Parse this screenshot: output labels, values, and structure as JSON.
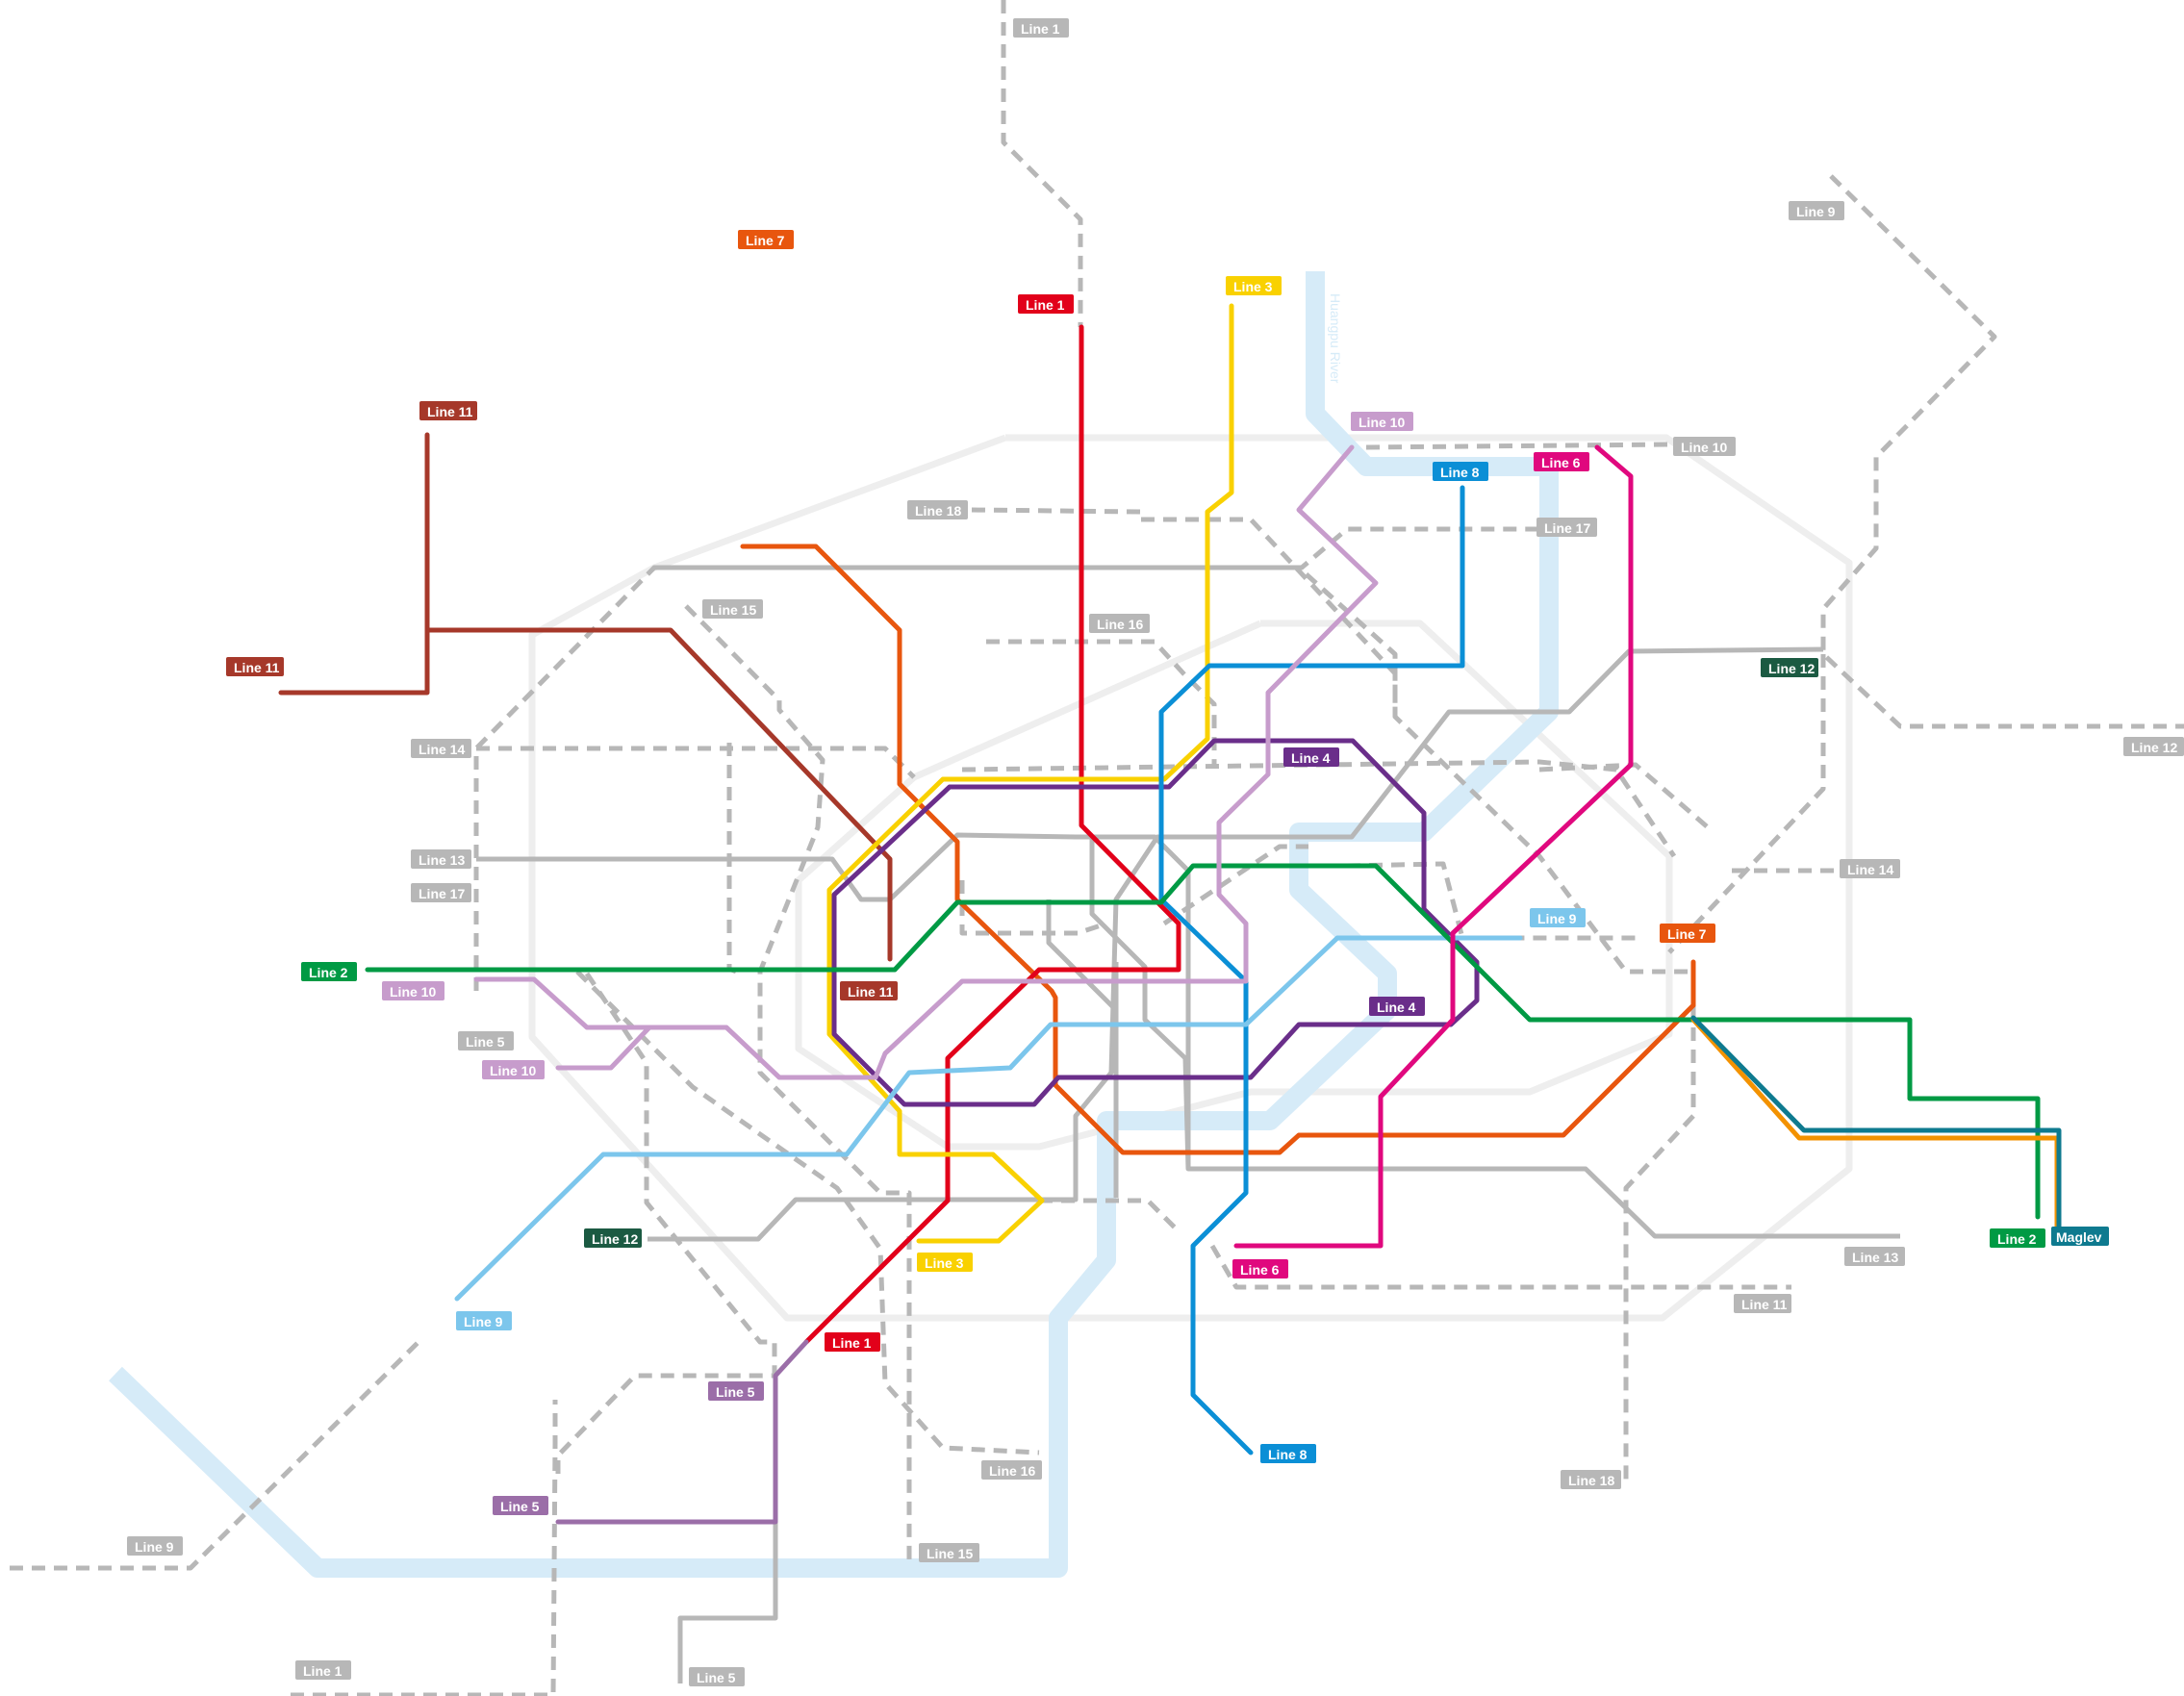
{
  "colors": {
    "line1": "#e2001a",
    "line2": "#009a44",
    "line3": "#f9d100",
    "line4": "#6a2e8a",
    "line5": "#9b6ea8",
    "line6": "#e0087e",
    "line7": "#e8560e",
    "line8": "#0b8fd6",
    "line9": "#7cc6ec",
    "line10": "#c79ccc",
    "line11": "#a6382a",
    "line12": "#1b5a42",
    "maglev": "#0e7a8f",
    "maglev_alt": "#f39200",
    "planned": "#b7b7b7",
    "ring_road": "#eeeeee",
    "river": "#d6ebf8"
  },
  "river": {
    "name": "Huangpu River"
  },
  "labels": {
    "line1_a": "Line 1",
    "line1_b": "Line 1",
    "line1_c": "Line 1",
    "line1_d": "Line 1",
    "line2_a": "Line 2",
    "line2_b": "Line 2",
    "line3_a": "Line 3",
    "line3_b": "Line 3",
    "line4_a": "Line 4",
    "line4_b": "Line 4",
    "line5_a": "Line 5",
    "line5_b": "Line 5",
    "line5_c": "Line 5",
    "line5_d": "Line 5",
    "line6_a": "Line 6",
    "line6_b": "Line 6",
    "line7_a": "Line 7",
    "line7_b": "Line 7",
    "line8_a": "Line 8",
    "line8_b": "Line 8",
    "line9_a": "Line 9",
    "line9_b": "Line 9",
    "line9_c": "Line 9",
    "line9_d": "Line 9",
    "line10_a": "Line 10",
    "line10_b": "Line 10",
    "line10_c": "Line 10",
    "line10_d": "Line 10",
    "line11_a": "Line 11",
    "line11_b": "Line 11",
    "line11_c": "Line 11",
    "line11_d": "Line 11",
    "line12_a": "Line 12",
    "line12_b": "Line 12",
    "line12_c": "Line 12",
    "line13_a": "Line 13",
    "line13_b": "Line 13",
    "line14_a": "Line 14",
    "line14_b": "Line 14",
    "line15_a": "Line 15",
    "line15_b": "Line 15",
    "line16_a": "Line 16",
    "line16_b": "Line 16",
    "line17_a": "Line 17",
    "line17_b": "Line 17",
    "line18_a": "Line 18",
    "line18_b": "Line 18",
    "maglev": "Maglev"
  }
}
